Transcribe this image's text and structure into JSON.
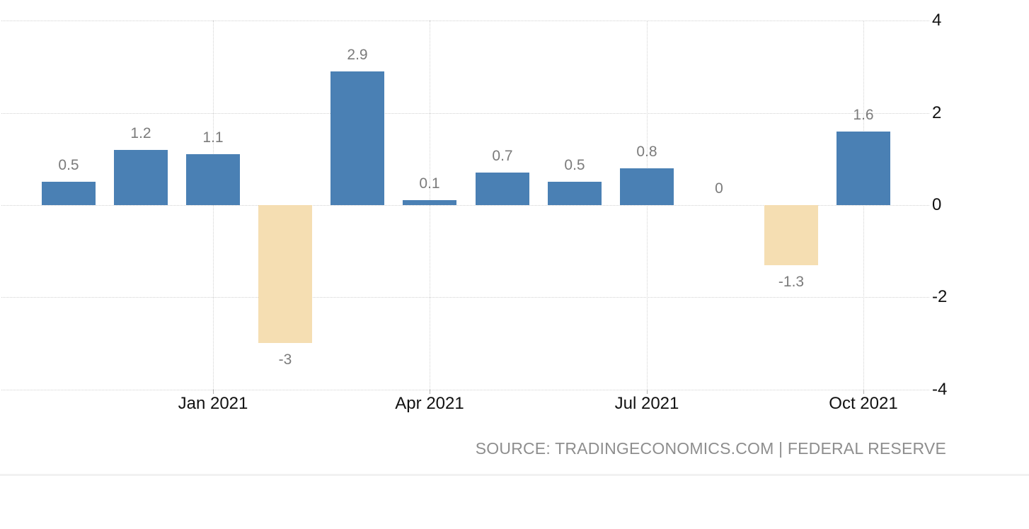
{
  "chart_data": {
    "type": "bar",
    "values": [
      0.5,
      1.2,
      1.1,
      -3,
      2.9,
      0.1,
      0.7,
      0.5,
      0.8,
      0,
      -1.3,
      1.6
    ],
    "value_labels": [
      "0.5",
      "1.2",
      "1.1",
      "-3",
      "2.9",
      "0.1",
      "0.7",
      "0.5",
      "0.8",
      "0",
      "-1.3",
      "1.6"
    ],
    "x_ticks": [
      {
        "index": 2,
        "label": "Jan 2021"
      },
      {
        "index": 5,
        "label": "Apr 2021"
      },
      {
        "index": 8,
        "label": "Jul 2021"
      },
      {
        "index": 11,
        "label": "Oct 2021"
      }
    ],
    "y_ticks": [
      "4",
      "2",
      "0",
      "-2",
      "-4"
    ],
    "ylim": [
      -4,
      4
    ],
    "title": "",
    "xlabel": "",
    "ylabel": "",
    "legend": "none",
    "grid": "dotted",
    "y_axis_side": "right",
    "colors": {
      "positive_bar": "#4a80b4",
      "negative_bar": "#f5deb2",
      "gridline": "#d2d2d2",
      "value_label": "#7b7b7b",
      "axis_label": "#111111"
    }
  },
  "footer": {
    "source_text": "SOURCE: TRADINGECONOMICS.COM | FEDERAL RESERVE"
  }
}
